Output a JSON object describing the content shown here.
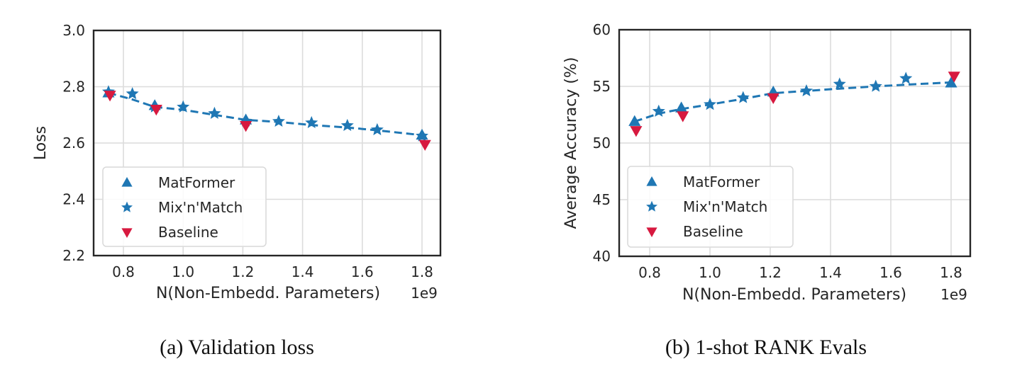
{
  "colors": {
    "matformer": "#1f77b4",
    "mixnmatch": "#1f77b4",
    "baseline": "#d7193f",
    "fit_line": "#1f77b4"
  },
  "chart_data": [
    {
      "id": "a",
      "type": "scatter",
      "caption": "(a) Validation loss",
      "title": "",
      "xlabel": "N(Non-Embedd. Parameters)",
      "x_offset_label": "1e9",
      "ylabel": "Loss",
      "xlim": [
        0.7,
        1.85
      ],
      "ylim": [
        2.2,
        3.0
      ],
      "xticks": [
        0.8,
        1.0,
        1.2,
        1.4,
        1.6,
        1.8
      ],
      "xtick_labels": [
        "0.8",
        "1.0",
        "1.2",
        "1.4",
        "1.6",
        "1.8"
      ],
      "yticks": [
        2.2,
        2.4,
        2.6,
        2.8,
        3.0
      ],
      "ytick_labels": [
        "2.2",
        "2.4",
        "2.6",
        "2.8",
        "3.0"
      ],
      "grid": true,
      "legend_position": "lower-left",
      "legend": [
        "MatFormer",
        "Mix'n'Match",
        "Baseline"
      ],
      "series": [
        {
          "name": "MatFormer",
          "marker": "triangle-up",
          "x": [
            0.75,
            0.905,
            1.21,
            1.8
          ],
          "y": [
            2.778,
            2.733,
            2.682,
            2.628
          ]
        },
        {
          "name": "Mix'n'Match",
          "marker": "star",
          "x": [
            0.75,
            0.83,
            0.905,
            1.0,
            1.105,
            1.21,
            1.32,
            1.43,
            1.55,
            1.65,
            1.8
          ],
          "y": [
            2.782,
            2.775,
            2.728,
            2.728,
            2.705,
            2.678,
            2.677,
            2.672,
            2.662,
            2.647,
            2.625
          ]
        },
        {
          "name": "Baseline",
          "marker": "triangle-down",
          "x": [
            0.755,
            0.91,
            1.21,
            1.81
          ],
          "y": [
            2.77,
            2.72,
            2.662,
            2.595
          ]
        },
        {
          "name": "fit",
          "marker": "dashed-line",
          "x": [
            0.75,
            0.83,
            0.905,
            1.0,
            1.105,
            1.21,
            1.32,
            1.43,
            1.55,
            1.65,
            1.8
          ],
          "y": [
            2.778,
            2.755,
            2.728,
            2.718,
            2.7,
            2.682,
            2.675,
            2.664,
            2.655,
            2.645,
            2.628
          ]
        }
      ]
    },
    {
      "id": "b",
      "type": "scatter",
      "caption": "(b) 1-shot RANK Evals",
      "title": "",
      "xlabel": "N(Non-Embedd. Parameters)",
      "x_offset_label": "1e9",
      "ylabel": "Average Accuracy (%)",
      "xlim": [
        0.7,
        1.85
      ],
      "ylim": [
        40,
        60
      ],
      "xticks": [
        0.8,
        1.0,
        1.2,
        1.4,
        1.6,
        1.8
      ],
      "xtick_labels": [
        "0.8",
        "1.0",
        "1.2",
        "1.4",
        "1.6",
        "1.8"
      ],
      "yticks": [
        40,
        45,
        50,
        55,
        60
      ],
      "ytick_labels": [
        "40",
        "45",
        "50",
        "55",
        "60"
      ],
      "grid": true,
      "legend_position": "lower-left",
      "legend": [
        "MatFormer",
        "Mix'n'Match",
        "Baseline"
      ],
      "series": [
        {
          "name": "MatFormer",
          "marker": "triangle-up",
          "x": [
            0.75,
            0.905,
            1.21,
            1.8
          ],
          "y": [
            51.9,
            53.1,
            54.5,
            55.3
          ]
        },
        {
          "name": "Mix'n'Match",
          "marker": "star",
          "x": [
            0.83,
            1.0,
            1.11,
            1.32,
            1.43,
            1.55,
            1.65
          ],
          "y": [
            52.8,
            53.4,
            54.0,
            54.6,
            55.2,
            55.0,
            55.7
          ]
        },
        {
          "name": "Baseline",
          "marker": "triangle-down",
          "x": [
            0.755,
            0.91,
            1.21,
            1.81
          ],
          "y": [
            51.1,
            52.4,
            54.0,
            55.9
          ]
        },
        {
          "name": "fit",
          "marker": "dashed-line",
          "x": [
            0.75,
            0.83,
            0.905,
            1.0,
            1.11,
            1.21,
            1.32,
            1.43,
            1.55,
            1.65,
            1.8
          ],
          "y": [
            51.9,
            52.6,
            53.0,
            53.4,
            53.9,
            54.4,
            54.6,
            54.8,
            55.0,
            55.15,
            55.35
          ]
        }
      ]
    }
  ]
}
